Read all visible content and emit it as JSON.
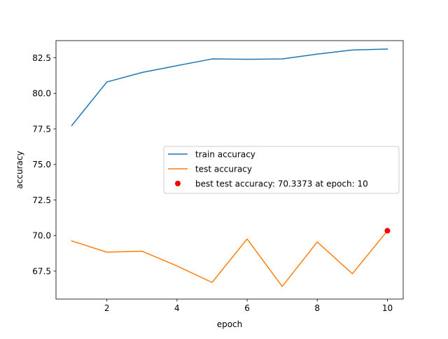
{
  "chart_data": {
    "type": "line",
    "title": "",
    "xlabel": "epoch",
    "ylabel": "accuracy",
    "xlim": [
      0.55,
      10.45
    ],
    "ylim": [
      65.53,
      83.71
    ],
    "x_ticks": [
      2,
      4,
      6,
      8,
      10
    ],
    "x_tick_labels": [
      "2",
      "4",
      "6",
      "8",
      "10"
    ],
    "y_ticks": [
      67.5,
      70.0,
      72.5,
      75.0,
      77.5,
      80.0,
      82.5
    ],
    "y_tick_labels": [
      "67.5",
      "70.0",
      "72.5",
      "75.0",
      "77.5",
      "80.0",
      "82.5"
    ],
    "grid": false,
    "legend_position": "center-right",
    "x": [
      1,
      2,
      3,
      4,
      5,
      6,
      7,
      8,
      9,
      10
    ],
    "series": [
      {
        "name": "train accuracy",
        "color": "#1f77b4",
        "values": [
          77.74,
          80.8,
          81.47,
          81.95,
          82.42,
          82.4,
          82.42,
          82.76,
          83.05,
          83.12
        ]
      },
      {
        "name": "test accuracy",
        "color": "#ff7f0e",
        "values": [
          69.62,
          68.83,
          68.9,
          67.86,
          66.7,
          69.76,
          66.42,
          69.55,
          67.31,
          70.34
        ]
      }
    ],
    "highlight": {
      "label": "best test accuracy: 70.3373 at epoch: 10",
      "x": 10,
      "y": 70.3373,
      "color": "#ff0000"
    }
  }
}
